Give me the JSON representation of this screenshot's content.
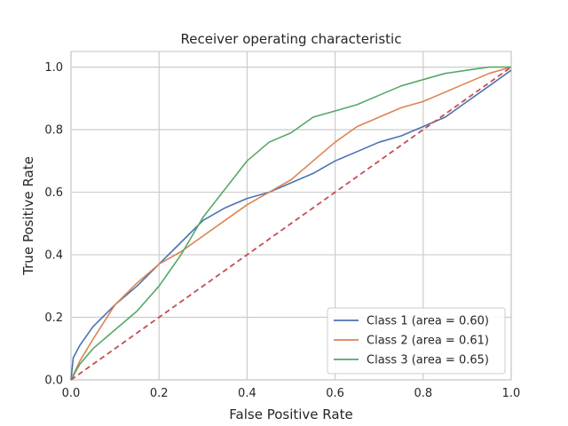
{
  "chart_data": {
    "type": "line",
    "title": "Receiver operating characteristic",
    "xlabel": "False Positive Rate",
    "ylabel": "True Positive Rate",
    "xlim": [
      0.0,
      1.0
    ],
    "ylim": [
      0.0,
      1.05
    ],
    "xticks": [
      "0.0",
      "0.2",
      "0.4",
      "0.6",
      "0.8",
      "1.0"
    ],
    "yticks": [
      "0.0",
      "0.2",
      "0.4",
      "0.6",
      "0.8",
      "1.0"
    ],
    "grid": true,
    "legend_position": "lower-right",
    "series": [
      {
        "name": "Class 1 (area = 0.60)",
        "color": "#4c72b0",
        "x": [
          0.0,
          0.005,
          0.02,
          0.05,
          0.1,
          0.15,
          0.2,
          0.25,
          0.3,
          0.35,
          0.4,
          0.45,
          0.5,
          0.55,
          0.6,
          0.65,
          0.7,
          0.75,
          0.8,
          0.85,
          0.9,
          0.95,
          1.0
        ],
        "y": [
          0.0,
          0.07,
          0.11,
          0.17,
          0.24,
          0.3,
          0.37,
          0.44,
          0.51,
          0.55,
          0.58,
          0.6,
          0.63,
          0.66,
          0.7,
          0.73,
          0.76,
          0.78,
          0.81,
          0.84,
          0.89,
          0.94,
          0.99
        ]
      },
      {
        "name": "Class 2 (area = 0.61)",
        "color": "#dd8452",
        "x": [
          0.0,
          0.02,
          0.05,
          0.1,
          0.15,
          0.2,
          0.25,
          0.3,
          0.35,
          0.4,
          0.45,
          0.5,
          0.55,
          0.6,
          0.65,
          0.7,
          0.75,
          0.8,
          0.85,
          0.9,
          0.95,
          1.0
        ],
        "y": [
          0.0,
          0.06,
          0.13,
          0.24,
          0.31,
          0.37,
          0.41,
          0.46,
          0.51,
          0.56,
          0.6,
          0.64,
          0.7,
          0.76,
          0.81,
          0.84,
          0.87,
          0.89,
          0.92,
          0.95,
          0.98,
          1.0
        ]
      },
      {
        "name": "Class 3 (area = 0.65)",
        "color": "#55a868",
        "x": [
          0.0,
          0.02,
          0.05,
          0.1,
          0.15,
          0.2,
          0.25,
          0.3,
          0.35,
          0.4,
          0.45,
          0.5,
          0.55,
          0.6,
          0.65,
          0.7,
          0.75,
          0.8,
          0.85,
          0.9,
          0.95,
          1.0
        ],
        "y": [
          0.0,
          0.05,
          0.1,
          0.16,
          0.22,
          0.3,
          0.4,
          0.52,
          0.61,
          0.7,
          0.76,
          0.79,
          0.84,
          0.86,
          0.88,
          0.91,
          0.94,
          0.96,
          0.98,
          0.99,
          1.0,
          1.0
        ]
      }
    ],
    "reference_line": {
      "color": "#c44e52",
      "style": "dashed",
      "x": [
        0.0,
        1.0
      ],
      "y": [
        0.0,
        1.0
      ]
    }
  }
}
